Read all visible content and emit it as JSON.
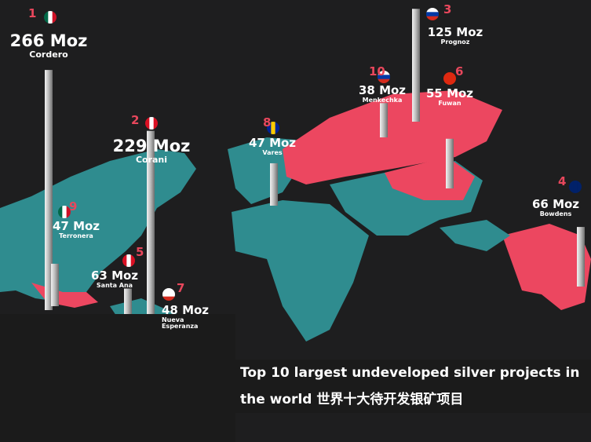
{
  "projects": [
    {
      "rank": 1,
      "value": 266,
      "value_label": "266 Moz",
      "name": "Cordero"
    },
    {
      "rank": 2,
      "value": 229,
      "value_label": "229 Moz",
      "name": "Corani"
    },
    {
      "rank": 3,
      "value": 125,
      "value_label": "125 Moz",
      "name": "Prognoz"
    },
    {
      "rank": 4,
      "value": 66,
      "value_label": "66 Moz",
      "name": "Bowdens"
    },
    {
      "rank": 5,
      "value": 63,
      "value_label": "63 Moz",
      "name": "Santa Ana"
    },
    {
      "rank": 6,
      "value": 55,
      "value_label": "55 Moz",
      "name": "Fuwan"
    },
    {
      "rank": 7,
      "value": 48,
      "value_label": "48 Moz",
      "name": "Nueva Esperanza"
    },
    {
      "rank": 8,
      "value": 47,
      "value_label": "47 Moz",
      "name": "Vares"
    },
    {
      "rank": 9,
      "value": 47,
      "value_label": "47 Moz",
      "name": "Terronera"
    },
    {
      "rank": 10,
      "value": 38,
      "value_label": "38 Moz",
      "name": "Menkechka"
    }
  ],
  "caption": "Top 10 largest undeveloped silver projects in the world 世界十大待开发银矿项目"
}
